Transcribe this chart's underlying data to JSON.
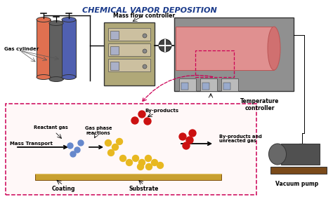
{
  "title": "CHEMICAL VAPOR DEPOSITION",
  "title_color": "#1a3a8a",
  "bg_color": "#ffffff",
  "cylinder_colors": [
    "#e07050",
    "#606060",
    "#5060b0"
  ],
  "cylinder_label": "Gas cylinder",
  "mfc_label": "Mass flow controller",
  "mfc_box_color": "#b0a878",
  "furnace_body_color": "#909090",
  "furnace_tube_color": "#e09090",
  "temp_ctrl_label": "Temperature\ncontroller",
  "vacuum_label": "Vacuum pump",
  "vacuum_platform_color": "#7a4a1a",
  "vacuum_body_color": "#505050",
  "dashed_box_color": "#cc0055",
  "substrate_color": "#c8a030",
  "blue_dot_color": "#6688cc",
  "yellow_dot_color": "#e8b820",
  "red_dot_color": "#cc1111",
  "mass_transport_label": "Mass Transport",
  "reactant_gas_label": "Reactant gas",
  "gas_phase_label": "Gas phase\nreactions",
  "byproducts_label": "By-products",
  "byproducts2_label": "By-products and\nunreacted gas",
  "coating_label": "Coating",
  "substrate_label": "Substrate"
}
